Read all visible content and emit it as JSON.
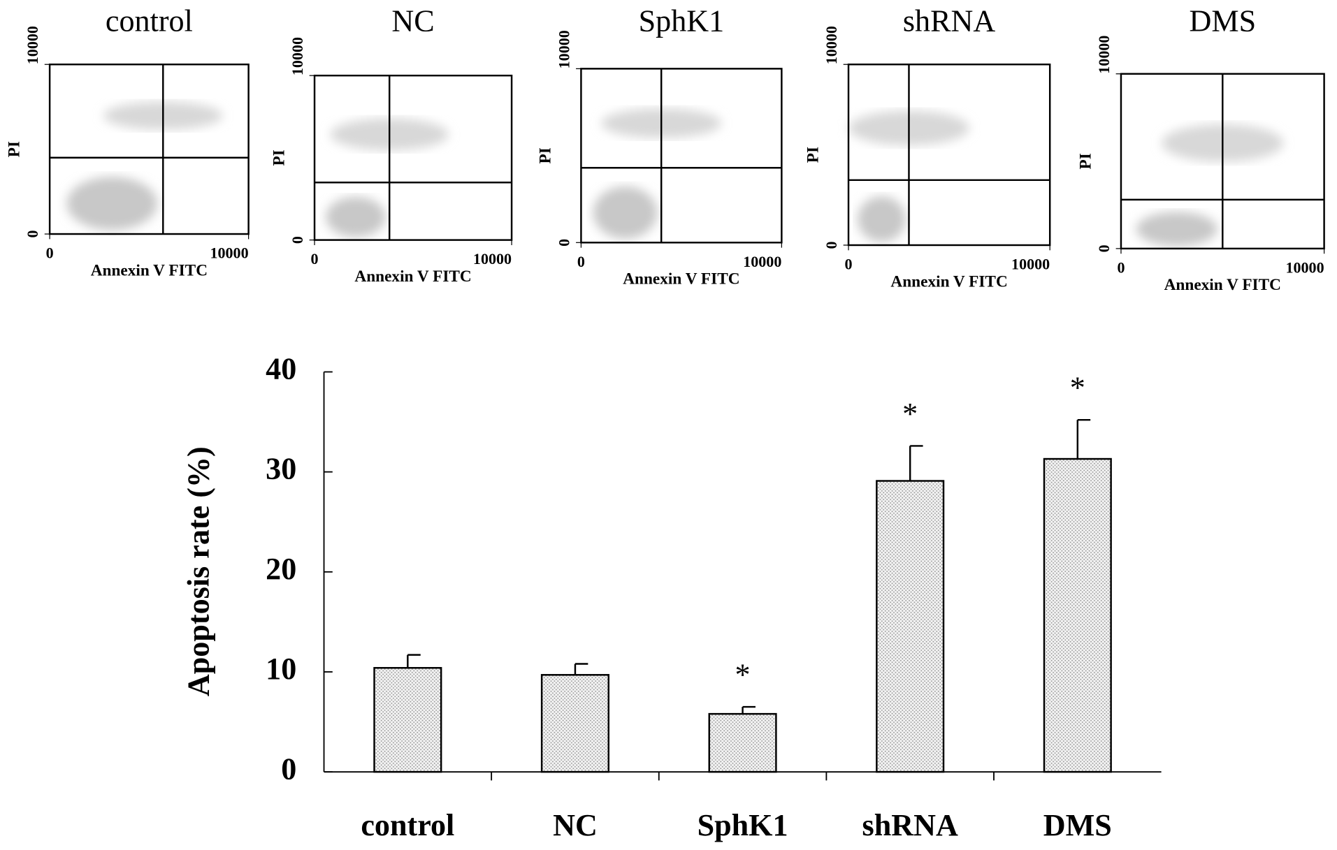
{
  "chart_data": [
    {
      "type": "scatter",
      "title": "control",
      "xlabel": "Annexin V FITC",
      "ylabel": "PI",
      "xlim": [
        0,
        10000
      ],
      "ylim": [
        0,
        10000
      ],
      "xticks": [
        0,
        10000
      ],
      "yticks": [
        0,
        10000
      ],
      "quadrant": {
        "x": 5700,
        "y": 4500
      }
    },
    {
      "type": "scatter",
      "title": "NC",
      "xlabel": "Annexin V FITC",
      "ylabel": "PI",
      "xlim": [
        0,
        10000
      ],
      "ylim": [
        0,
        10000
      ],
      "xticks": [
        0,
        10000
      ],
      "yticks": [
        0,
        10000
      ],
      "quadrant": {
        "x": 3800,
        "y": 3500
      }
    },
    {
      "type": "scatter",
      "title": "SphK1",
      "xlabel": "Annexin V FITC",
      "ylabel": "PI",
      "xlim": [
        0,
        10000
      ],
      "ylim": [
        0,
        10000
      ],
      "xticks": [
        0,
        10000
      ],
      "yticks": [
        0,
        10000
      ],
      "quadrant": {
        "x": 4000,
        "y": 4300
      }
    },
    {
      "type": "scatter",
      "title": "shRNA",
      "xlabel": "Annexin V FITC",
      "ylabel": "PI",
      "xlim": [
        0,
        10000
      ],
      "ylim": [
        0,
        10000
      ],
      "xticks": [
        0,
        10000
      ],
      "yticks": [
        0,
        10000
      ],
      "quadrant": {
        "x": 3000,
        "y": 3600
      }
    },
    {
      "type": "scatter",
      "title": "DMS",
      "xlabel": "Annexin V FITC",
      "ylabel": "PI",
      "xlim": [
        0,
        10000
      ],
      "ylim": [
        0,
        10000
      ],
      "xticks": [
        0,
        10000
      ],
      "yticks": [
        0,
        10000
      ],
      "quadrant": {
        "x": 5000,
        "y": 2800
      }
    },
    {
      "type": "bar",
      "ylabel": "Apoptosis rate (%)",
      "categories": [
        "control",
        "NC",
        "SphK1",
        "shRNA",
        "DMS"
      ],
      "values": [
        10.4,
        9.7,
        5.8,
        29.1,
        31.3
      ],
      "errors": [
        1.3,
        1.1,
        0.7,
        3.5,
        3.9
      ],
      "annotations": [
        null,
        null,
        "*",
        "*",
        "*"
      ],
      "color": "#b0b0b0",
      "ylim": [
        0,
        40
      ],
      "yticks": [
        0,
        10,
        20,
        30,
        40
      ]
    }
  ]
}
